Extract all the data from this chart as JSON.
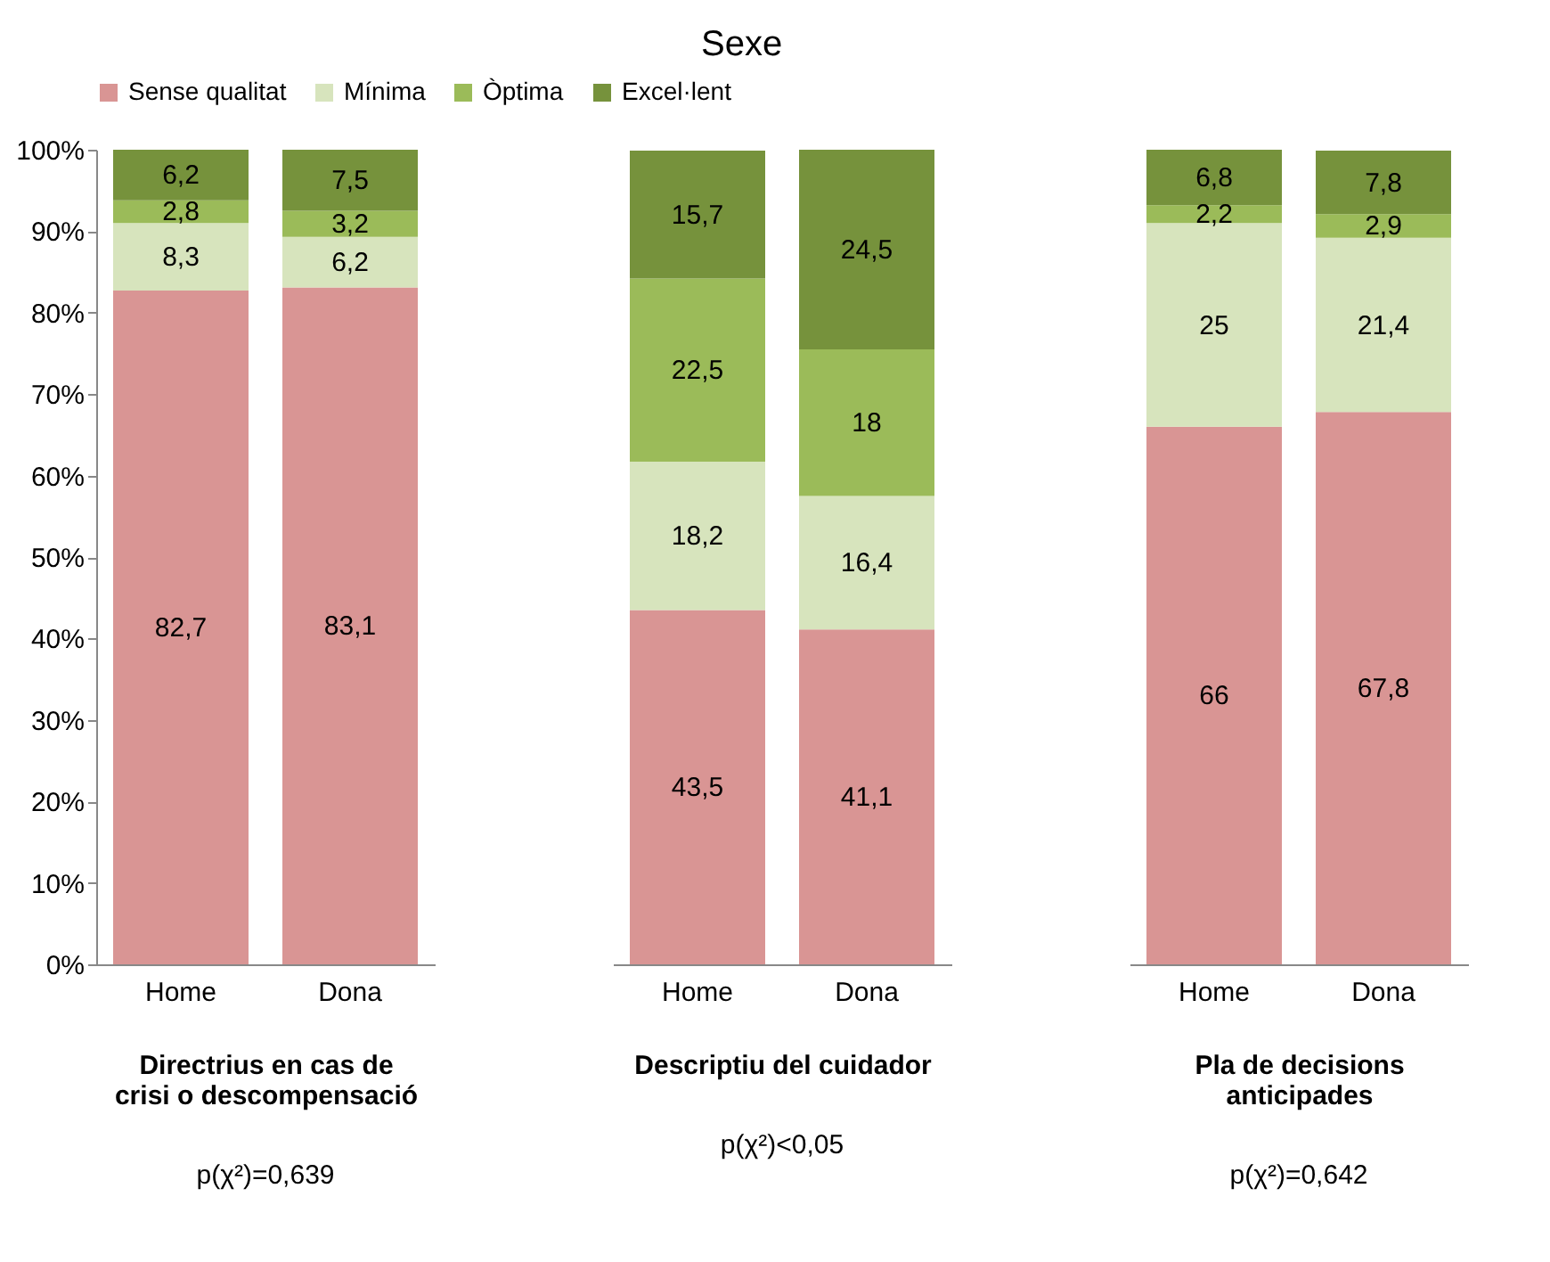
{
  "chart_data": [
    {
      "type": "bar",
      "xlabel": "Directrius en cas de crisi o descompensació",
      "categories": [
        "Home",
        "Dona"
      ],
      "stacked": true,
      "legend": "top",
      "ylim": [
        0,
        100
      ],
      "yticks": [
        {
          "value": 0,
          "label": "0%"
        },
        {
          "value": 10,
          "label": "10%"
        },
        {
          "value": 20,
          "label": "20%"
        },
        {
          "value": 30,
          "label": "30%"
        },
        {
          "value": 40,
          "label": "40%"
        },
        {
          "value": 50,
          "label": "50%"
        },
        {
          "value": 60,
          "label": "60%"
        },
        {
          "value": 70,
          "label": "70%"
        },
        {
          "value": 80,
          "label": "80%"
        },
        {
          "value": 90,
          "label": "90%"
        },
        {
          "value": 100,
          "label": "100%"
        }
      ],
      "annotations": [
        "p(χ²)=0,639"
      ],
      "series": [
        {
          "name": "Sense qualitat",
          "color": "#d99594",
          "values": [
            82.7,
            83.1
          ],
          "value_labels": [
            "82,7",
            "83,1"
          ]
        },
        {
          "name": "Mínima",
          "color": "#d7e4bd",
          "values": [
            8.3,
            6.2
          ],
          "value_labels": [
            "8,3",
            "6,2"
          ]
        },
        {
          "name": "Òptima",
          "color": "#9bbb59",
          "values": [
            2.8,
            3.2
          ],
          "value_labels": [
            "2,8",
            "3,2"
          ]
        },
        {
          "name": "Excel·lent",
          "color": "#76923c",
          "values": [
            6.2,
            7.5
          ],
          "value_labels": [
            "6,2",
            "7,5"
          ]
        }
      ]
    },
    {
      "type": "bar",
      "title": "Sexe",
      "xlabel": "Descriptiu del cuidador",
      "categories": [
        "Home",
        "Dona"
      ],
      "stacked": true,
      "tick_labels": "x",
      "ylim": [
        0,
        100
      ],
      "annotations": [
        "p(χ²)<0,05"
      ],
      "series": [
        {
          "name": "Sense qualitat",
          "color": "#d99594",
          "values": [
            43.5,
            41.1
          ],
          "value_labels": [
            "43,5",
            "41,1"
          ]
        },
        {
          "name": "Mínima",
          "color": "#d7e4bd",
          "values": [
            18.2,
            16.4
          ],
          "value_labels": [
            "18,2",
            "16,4"
          ]
        },
        {
          "name": "Òptima",
          "color": "#9bbb59",
          "values": [
            22.5,
            18
          ],
          "value_labels": [
            "22,5",
            "18"
          ]
        },
        {
          "name": "Excel·lent",
          "color": "#76923c",
          "values": [
            15.7,
            24.5
          ],
          "value_labels": [
            "15,7",
            "24,5"
          ]
        }
      ]
    },
    {
      "type": "bar",
      "xlabel": "Pla de decisions anticipades",
      "categories": [
        "Home",
        "Dona"
      ],
      "stacked": true,
      "tick_labels": "x",
      "ylim": [
        0,
        100
      ],
      "annotations": [
        "p(χ²)=0,642"
      ],
      "series": [
        {
          "name": "Sense qualitat",
          "color": "#d99594",
          "values": [
            66,
            67.8
          ],
          "value_labels": [
            "66",
            "67,8"
          ]
        },
        {
          "name": "Mínima",
          "color": "#d7e4bd",
          "values": [
            25,
            21.4
          ],
          "value_labels": [
            "25",
            "21,4"
          ]
        },
        {
          "name": "Òptima",
          "color": "#9bbb59",
          "values": [
            2.2,
            2.9
          ],
          "value_labels": [
            "2,2",
            "2,9"
          ]
        },
        {
          "name": "Excel·lent",
          "color": "#76923c",
          "values": [
            6.8,
            7.8
          ],
          "value_labels": [
            "6,8",
            "7,8"
          ]
        }
      ]
    }
  ]
}
